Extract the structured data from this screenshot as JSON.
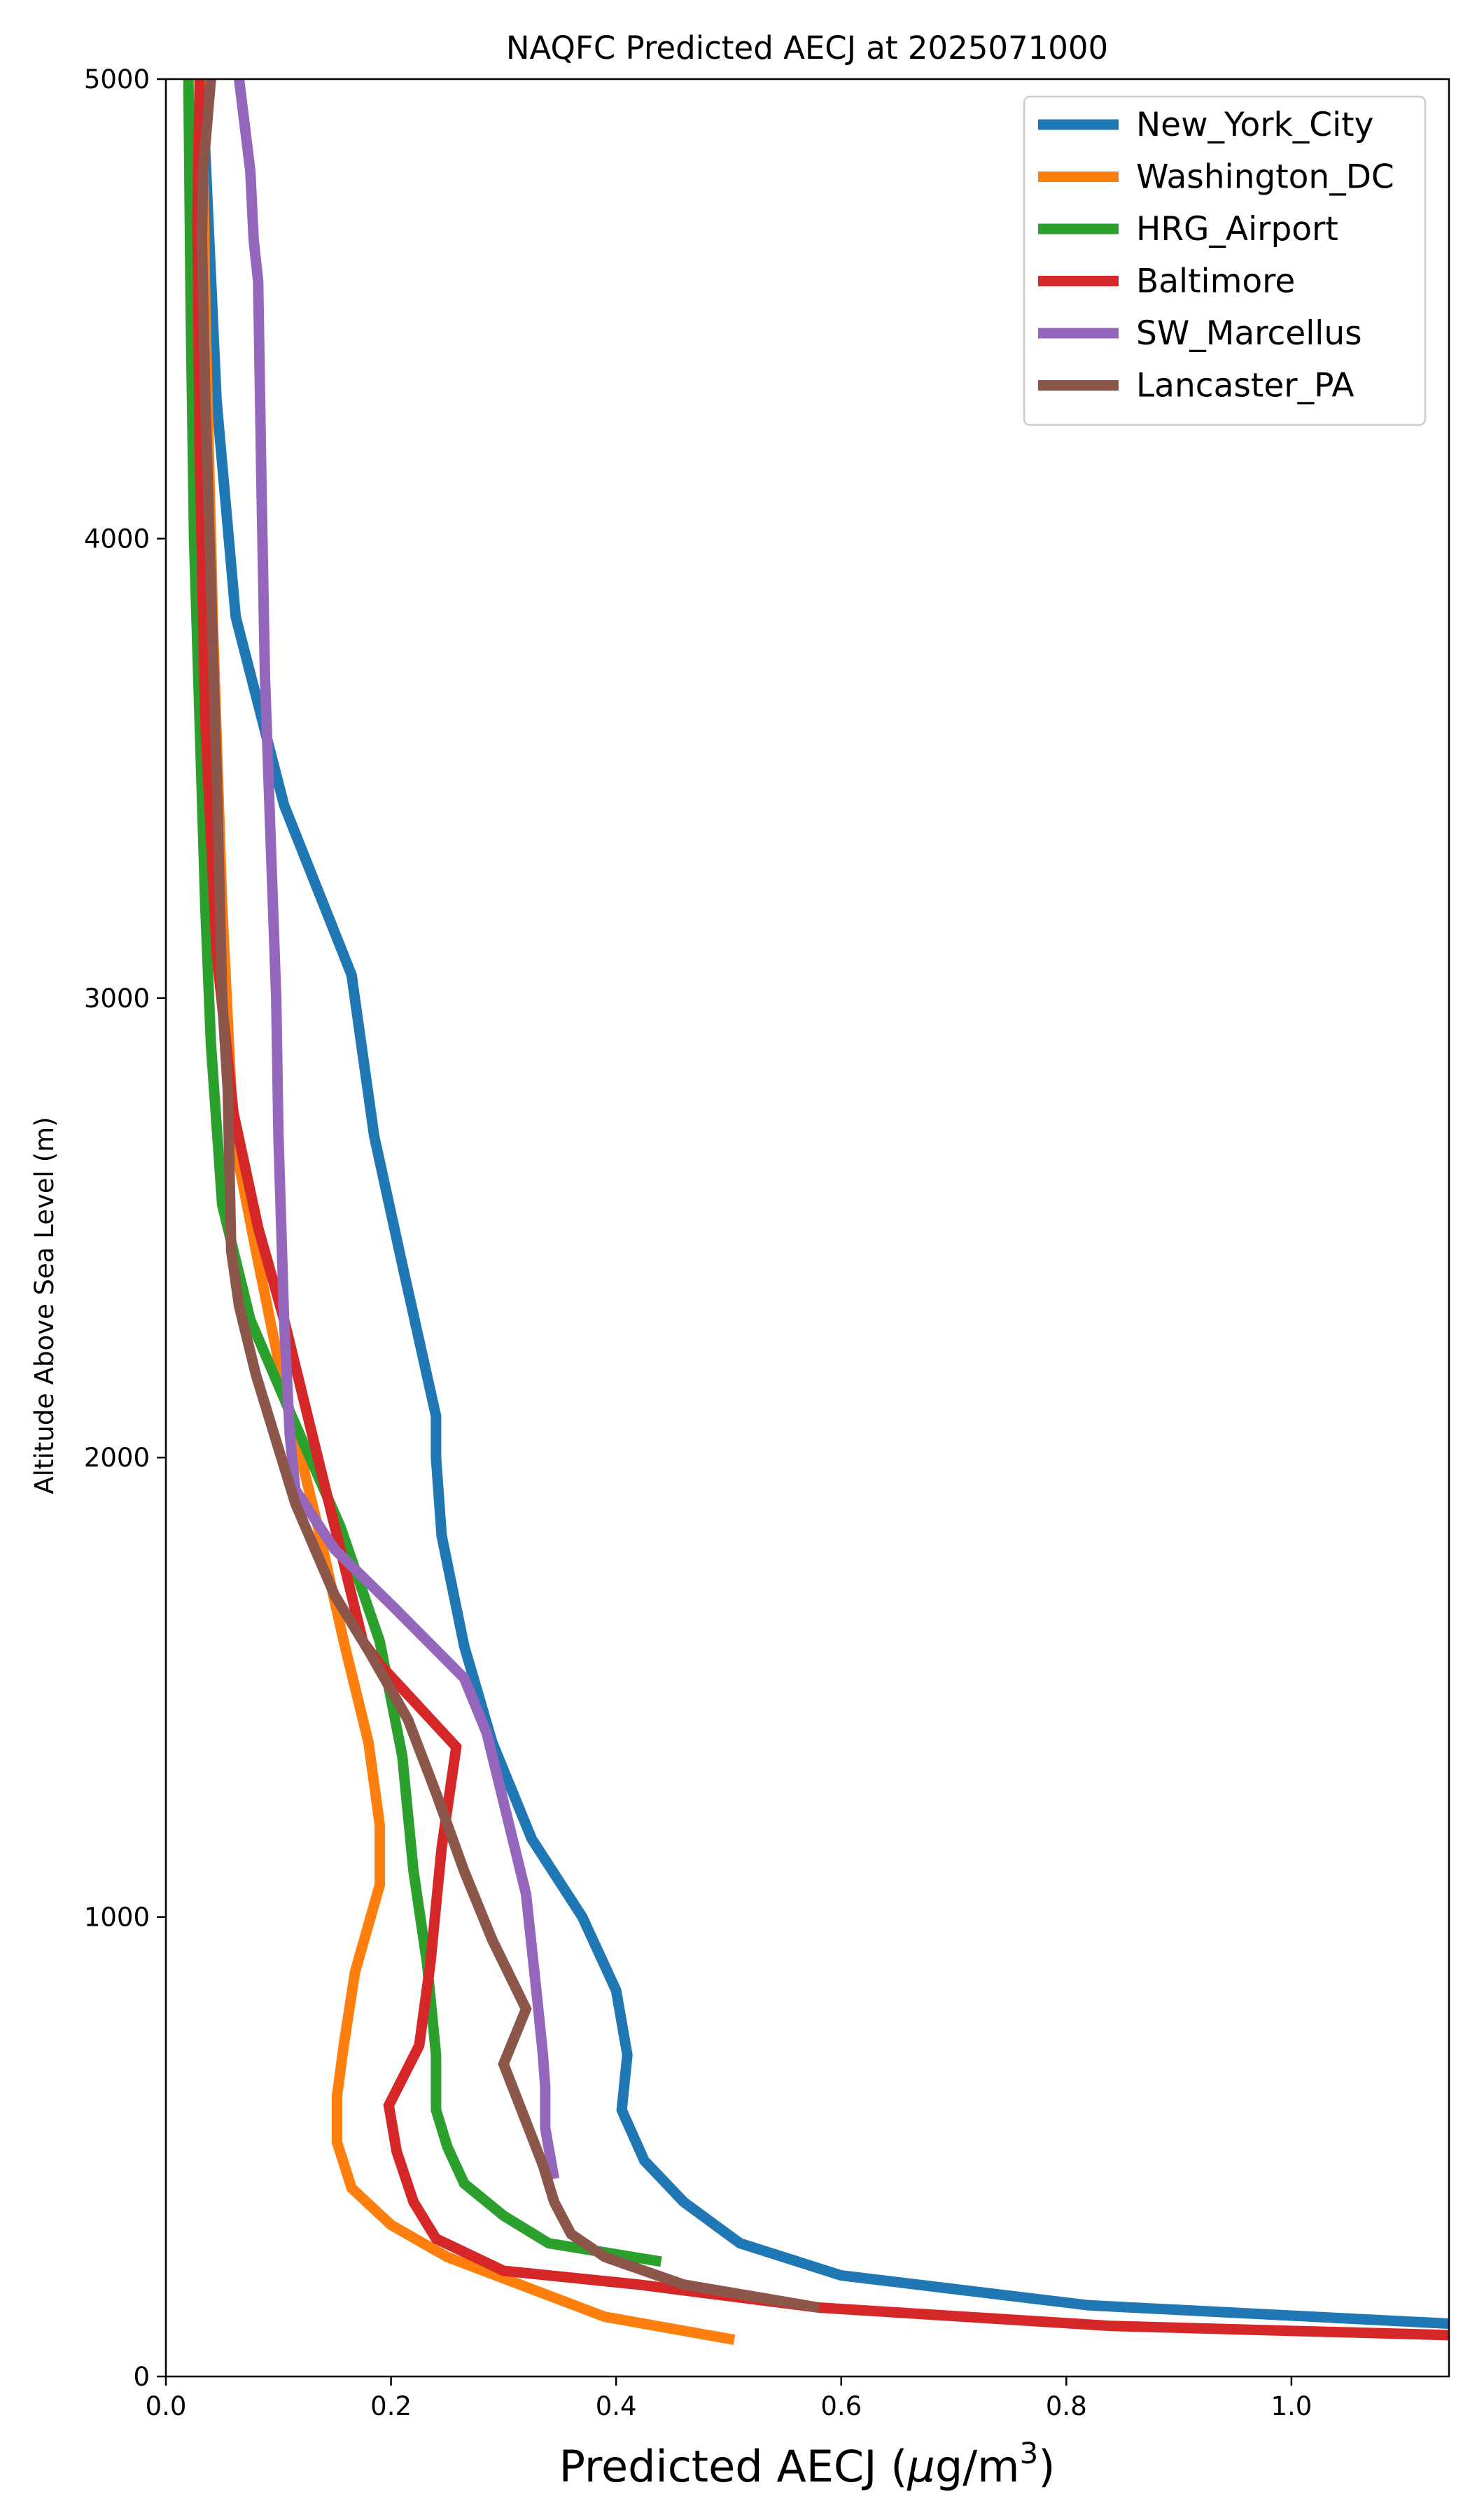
{
  "chart_data": {
    "type": "line",
    "title": "NAQFC Predicted AECJ at 2025071000",
    "xlabel": "Predicted AECJ (μg/m³)",
    "xlabel_main": "Predicted AECJ (",
    "xlabel_mu": "μ",
    "xlabel_unit": "g/m",
    "xlabel_sup": "3",
    "xlabel_close": ")",
    "ylabel": "Altitude Above Sea Level (m)",
    "xlim": [
      0,
      1.14
    ],
    "ylim": [
      0,
      5000
    ],
    "xticks": [
      0.0,
      0.2,
      0.4,
      0.6,
      0.8,
      1.0
    ],
    "xtick_labels": [
      "0.0",
      "0.2",
      "0.4",
      "0.6",
      "0.8",
      "1.0"
    ],
    "yticks": [
      0,
      1000,
      2000,
      3000,
      4000,
      5000
    ],
    "ytick_labels": [
      "0",
      "1000",
      "2000",
      "3000",
      "4000",
      "5000"
    ],
    "grid": false,
    "legend_position": "top-right",
    "series": [
      {
        "name": "New_York_City",
        "color": "#1f77b4",
        "x": [
          1.14,
          0.82,
          0.6,
          0.51,
          0.46,
          0.425,
          0.405,
          0.41,
          0.4,
          0.37,
          0.325,
          0.29,
          0.265,
          0.245,
          0.24,
          0.24,
          0.21,
          0.185,
          0.165,
          0.105,
          0.062,
          0.045,
          0.032
        ],
        "y": [
          115,
          155,
          220,
          290,
          380,
          470,
          580,
          700,
          840,
          1000,
          1170,
          1380,
          1590,
          1830,
          2000,
          2090,
          2420,
          2700,
          3050,
          3420,
          3830,
          4300,
          5000
        ]
      },
      {
        "name": "Washington_DC",
        "color": "#ff7f0e",
        "x": [
          0.505,
          0.39,
          0.25,
          0.2,
          0.165,
          0.152,
          0.152,
          0.158,
          0.168,
          0.19,
          0.19,
          0.18,
          0.158,
          0.135,
          0.105,
          0.08,
          0.06,
          0.05,
          0.042,
          0.035,
          0.032
        ],
        "y": [
          80,
          130,
          260,
          330,
          410,
          510,
          610,
          720,
          880,
          1070,
          1200,
          1380,
          1600,
          1850,
          2150,
          2450,
          2700,
          3200,
          3800,
          4500,
          5000
        ]
      },
      {
        "name": "HRG_Airport",
        "color": "#2ca02c",
        "x": [
          0.44,
          0.34,
          0.3,
          0.265,
          0.25,
          0.24,
          0.24,
          0.232,
          0.22,
          0.21,
          0.19,
          0.155,
          0.11,
          0.075,
          0.05,
          0.04,
          0.035,
          0.03,
          0.025,
          0.022,
          0.02
        ],
        "y": [
          250,
          290,
          350,
          420,
          500,
          580,
          700,
          900,
          1100,
          1350,
          1600,
          1850,
          2100,
          2300,
          2550,
          2900,
          3200,
          3600,
          4000,
          4500,
          5000
        ]
      },
      {
        "name": "Baltimore",
        "color": "#d62728",
        "x": [
          1.14,
          0.84,
          0.58,
          0.42,
          0.3,
          0.24,
          0.22,
          0.205,
          0.198,
          0.225,
          0.235,
          0.245,
          0.258,
          0.19,
          0.175,
          0.155,
          0.13,
          0.105,
          0.082,
          0.06,
          0.045,
          0.035,
          0.03,
          0.028,
          0.03
        ],
        "y": [
          90,
          110,
          150,
          200,
          230,
          300,
          380,
          490,
          590,
          720,
          900,
          1150,
          1370,
          1550,
          1600,
          1800,
          2050,
          2300,
          2500,
          2750,
          3100,
          3600,
          4200,
          4700,
          5000
        ]
      },
      {
        "name": "SW_Marcellus",
        "color": "#9467bd",
        "x": [
          0.345,
          0.337,
          0.337,
          0.335,
          0.33,
          0.32,
          0.3,
          0.285,
          0.265,
          0.2,
          0.15,
          0.115,
          0.11,
          0.105,
          0.1,
          0.098,
          0.093,
          0.088,
          0.085,
          0.082,
          0.078,
          0.075,
          0.065
        ],
        "y": [
          430,
          540,
          630,
          700,
          820,
          1050,
          1250,
          1400,
          1520,
          1680,
          1800,
          1930,
          2050,
          2300,
          2700,
          3000,
          3350,
          3700,
          4100,
          4560,
          4650,
          4800,
          5000
        ]
      },
      {
        "name": "Lancaster_PA",
        "color": "#8c564b",
        "x": [
          0.58,
          0.46,
          0.39,
          0.36,
          0.345,
          0.335,
          0.3,
          0.32,
          0.29,
          0.265,
          0.24,
          0.215,
          0.18,
          0.15,
          0.115,
          0.08,
          0.065,
          0.058,
          0.055,
          0.05,
          0.045,
          0.04,
          0.035,
          0.032,
          0.033,
          0.04
        ],
        "y": [
          150,
          200,
          260,
          310,
          380,
          460,
          680,
          800,
          950,
          1100,
          1270,
          1430,
          1580,
          1700,
          1900,
          2180,
          2330,
          2450,
          2800,
          3000,
          3500,
          3900,
          4300,
          4650,
          4800,
          5000
        ]
      }
    ]
  }
}
